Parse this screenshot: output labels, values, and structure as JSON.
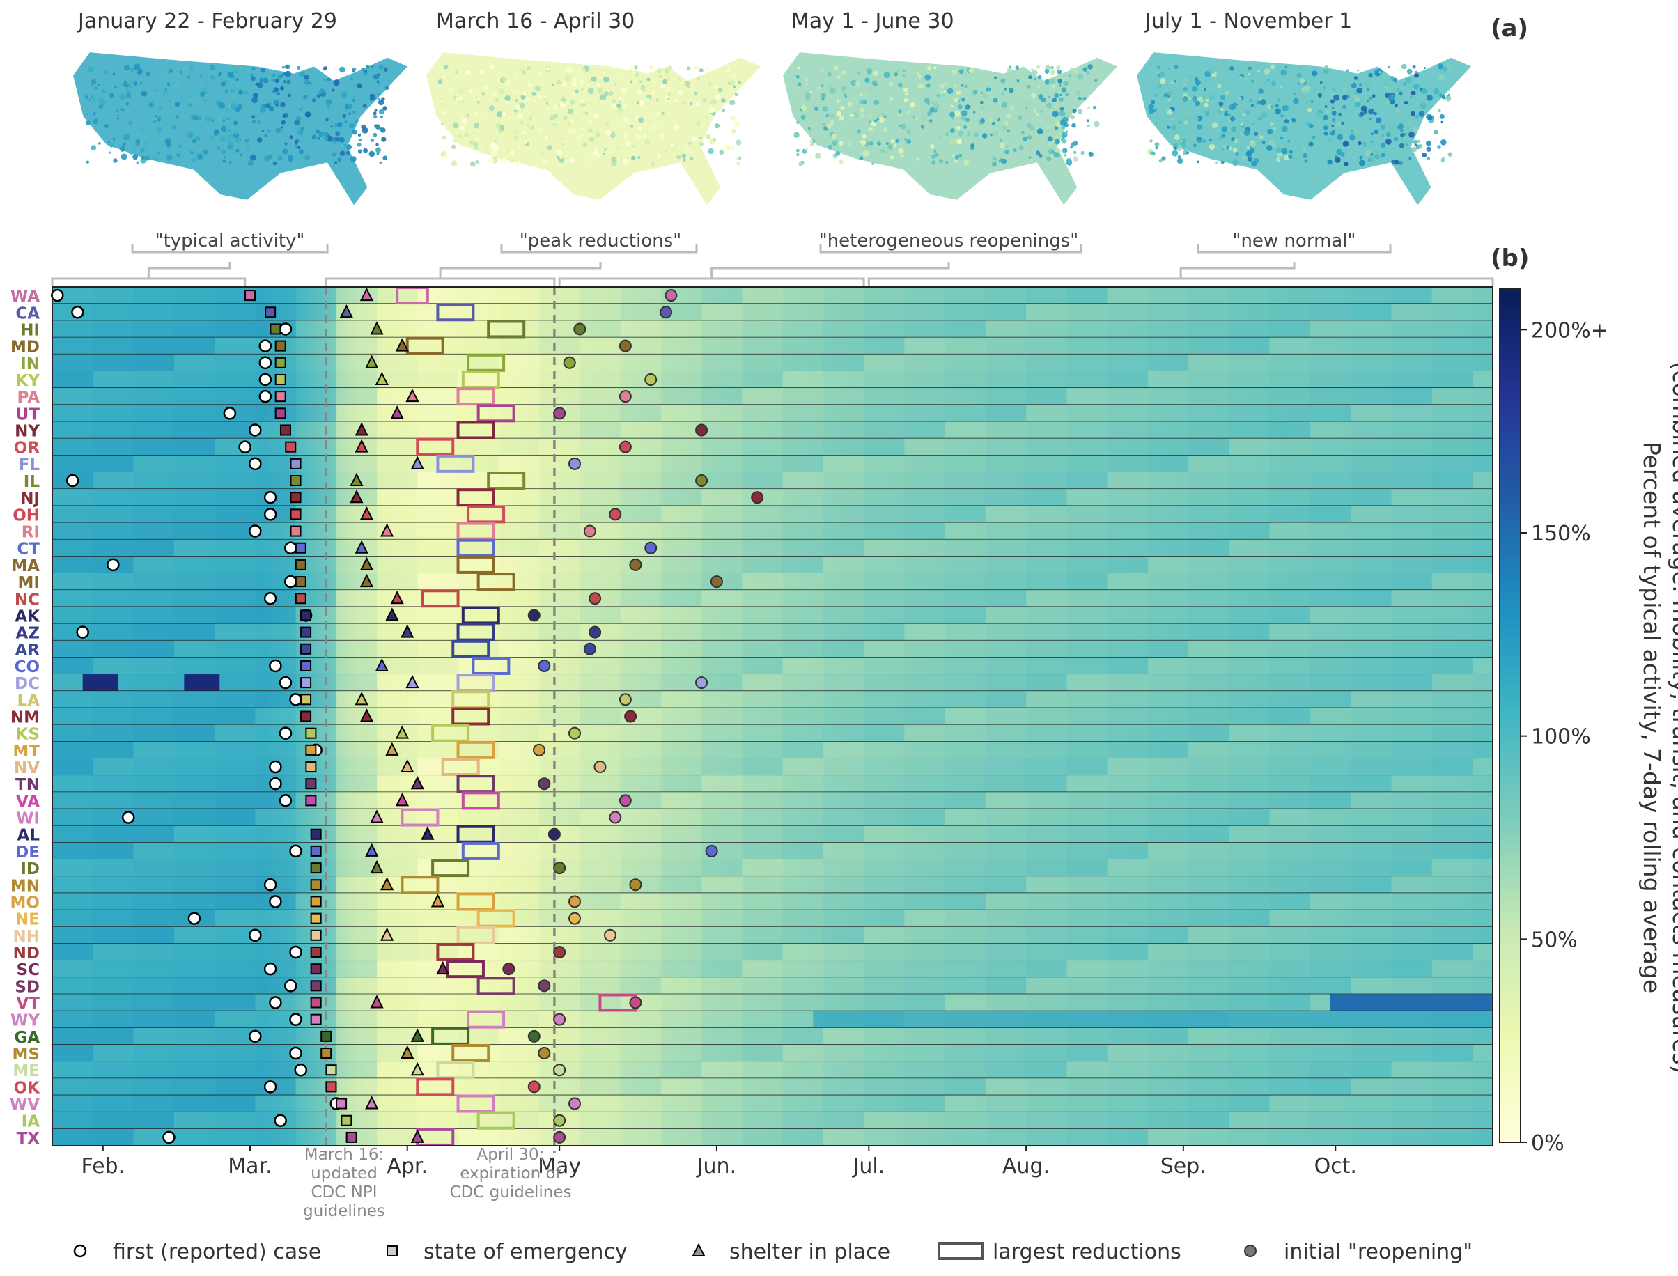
{
  "panel_labels": {
    "a": "(a)",
    "b": "(b)"
  },
  "maps": [
    {
      "title": "January 22 - February 29",
      "mean_pct": 115
    },
    {
      "title": "March 16 - April 30",
      "mean_pct": 30
    },
    {
      "title": "May 1 - June 30",
      "mean_pct": 70
    },
    {
      "title": "July 1 - November 1",
      "mean_pct": 95
    }
  ],
  "phases": [
    "\"typical activity\"",
    "\"peak reductions\"",
    "\"heterogeneous reopenings\"",
    "\"new normal\""
  ],
  "annotations": {
    "march16": [
      "March 16:",
      "updated",
      "CDC NPI",
      "guidelines"
    ],
    "april30": [
      "April 30:",
      "expiration of",
      "CDC guidelines"
    ]
  },
  "colors": {
    "colormap": [
      "#ffffd9",
      "#edf8b1",
      "#c7e9b4",
      "#7fcdbb",
      "#41b6c4",
      "#1d91c0",
      "#225ea8",
      "#253494",
      "#081d58"
    ],
    "row_border": "#222222",
    "guide_line": "#888888"
  },
  "chart_data": {
    "type": "heatmap",
    "xlabel": "",
    "ylabel": "",
    "x_range_days": [
      "Jan 22",
      "Nov 1"
    ],
    "month_ticks": [
      {
        "label": "Feb.",
        "day": 10
      },
      {
        "label": "Mar.",
        "day": 39
      },
      {
        "label": "Apr.",
        "day": 70
      },
      {
        "label": "May",
        "day": 100
      },
      {
        "label": "Jun.",
        "day": 131
      },
      {
        "label": "Jul.",
        "day": 161
      },
      {
        "label": "Aug.",
        "day": 192
      },
      {
        "label": "Sep.",
        "day": 223
      },
      {
        "label": "Oct.",
        "day": 253
      }
    ],
    "vlines": [
      {
        "day": 54
      },
      {
        "day": 99
      }
    ],
    "colorbar": {
      "label": [
        "Percent of typical activity, 7-day rolling average",
        "(combined average: mobility, transit, and contacts measures)"
      ],
      "ticks": [
        "0%",
        "50%",
        "100%",
        "150%",
        "200%+"
      ],
      "tick_values": [
        0,
        50,
        100,
        150,
        200
      ],
      "range": [
        0,
        210
      ]
    },
    "legend": [
      "first (reported) case",
      "state of emergency",
      "shelter in place",
      "largest reductions",
      "initial \"reopening\""
    ],
    "states": [
      {
        "abbr": "WA",
        "color": "#c86aa6",
        "case": 1,
        "soe": 39,
        "sip": 62,
        "red": [
          68,
          74
        ],
        "reopen": 122
      },
      {
        "abbr": "CA",
        "color": "#5a5ba9",
        "case": 5,
        "soe": 43,
        "sip": 58,
        "red": [
          76,
          83
        ],
        "reopen": 121
      },
      {
        "abbr": "HI",
        "color": "#6a7a2e",
        "case": 46,
        "soe": 44,
        "sip": 64,
        "red": [
          86,
          93
        ],
        "reopen": 104
      },
      {
        "abbr": "MD",
        "color": "#8a6a2b",
        "case": 42,
        "soe": 45,
        "sip": 69,
        "red": [
          70,
          77
        ],
        "reopen": 113
      },
      {
        "abbr": "IN",
        "color": "#8aa83a",
        "case": 42,
        "soe": 45,
        "sip": 63,
        "red": [
          82,
          89
        ],
        "reopen": 102
      },
      {
        "abbr": "KY",
        "color": "#b7c85a",
        "case": 42,
        "soe": 45,
        "sip": 65,
        "red": [
          81,
          88
        ],
        "reopen": 118
      },
      {
        "abbr": "PA",
        "color": "#e07e98",
        "case": 42,
        "soe": 45,
        "sip": 71,
        "red": [
          80,
          87
        ],
        "reopen": 113
      },
      {
        "abbr": "UT",
        "color": "#a7448e",
        "case": 35,
        "soe": 45,
        "sip": 68,
        "red": [
          84,
          91
        ],
        "reopen": 100
      },
      {
        "abbr": "NY",
        "color": "#7a2a3a",
        "case": 40,
        "soe": 46,
        "sip": 61,
        "red": [
          80,
          87
        ],
        "reopen": 128
      },
      {
        "abbr": "OR",
        "color": "#d04a5a",
        "case": 38,
        "soe": 47,
        "sip": 61,
        "red": [
          72,
          79
        ],
        "reopen": 113
      },
      {
        "abbr": "FL",
        "color": "#8a93d9",
        "case": 40,
        "soe": 48,
        "sip": 72,
        "red": [
          76,
          83
        ],
        "reopen": 103
      },
      {
        "abbr": "IL",
        "color": "#7a8a2e",
        "case": 4,
        "soe": 48,
        "sip": 60,
        "red": [
          86,
          93
        ],
        "reopen": 128
      },
      {
        "abbr": "NJ",
        "color": "#8a2a3a",
        "case": 43,
        "soe": 48,
        "sip": 60,
        "red": [
          80,
          87
        ],
        "reopen": 139
      },
      {
        "abbr": "OH",
        "color": "#d04a5a",
        "case": 43,
        "soe": 48,
        "sip": 62,
        "red": [
          82,
          89
        ],
        "reopen": 111
      },
      {
        "abbr": "RI",
        "color": "#e07e90",
        "case": 40,
        "soe": 48,
        "sip": 66,
        "red": [
          80,
          87
        ],
        "reopen": 106
      },
      {
        "abbr": "CT",
        "color": "#5a6ad0",
        "case": 47,
        "soe": 49,
        "sip": 61,
        "red": [
          80,
          87
        ],
        "reopen": 118
      },
      {
        "abbr": "MA",
        "color": "#8a6a2b",
        "case": 12,
        "soe": 49,
        "sip": 62,
        "red": [
          80,
          87
        ],
        "reopen": 115
      },
      {
        "abbr": "MI",
        "color": "#8a6a2b",
        "case": 47,
        "soe": 49,
        "sip": 62,
        "red": [
          84,
          91
        ],
        "reopen": 131
      },
      {
        "abbr": "NC",
        "color": "#c04a4a",
        "case": 43,
        "soe": 49,
        "sip": 68,
        "red": [
          73,
          80
        ],
        "reopen": 107
      },
      {
        "abbr": "AK",
        "color": "#2a2a6a",
        "case": 50,
        "soe": 50,
        "sip": 67,
        "red": [
          81,
          88
        ],
        "reopen": 95
      },
      {
        "abbr": "AZ",
        "color": "#3a3a8a",
        "case": 6,
        "soe": 50,
        "sip": 70,
        "red": [
          80,
          87
        ],
        "reopen": 107
      },
      {
        "abbr": "AR",
        "color": "#3a4a9a",
        "case": -1,
        "soe": 50,
        "sip": -1,
        "red": [
          79,
          86
        ],
        "reopen": 106
      },
      {
        "abbr": "CO",
        "color": "#5a6ad0",
        "case": 44,
        "soe": 50,
        "sip": 65,
        "red": [
          83,
          90
        ],
        "reopen": 97
      },
      {
        "abbr": "DC",
        "color": "#a0a0e0",
        "case": 46,
        "soe": 50,
        "sip": 71,
        "red": [
          80,
          87
        ],
        "reopen": 128
      },
      {
        "abbr": "LA",
        "color": "#c8c868",
        "case": 48,
        "soe": 50,
        "sip": 61,
        "red": [
          79,
          86
        ],
        "reopen": 113
      },
      {
        "abbr": "NM",
        "color": "#8a2a3a",
        "case": -1,
        "soe": 50,
        "sip": 62,
        "red": [
          79,
          86
        ],
        "reopen": 114
      },
      {
        "abbr": "KS",
        "color": "#b7c85a",
        "case": 46,
        "soe": 51,
        "sip": 69,
        "red": [
          75,
          82
        ],
        "reopen": 103
      },
      {
        "abbr": "MT",
        "color": "#d8a040",
        "case": 52,
        "soe": 51,
        "sip": 67,
        "red": [
          80,
          87
        ],
        "reopen": 96
      },
      {
        "abbr": "NV",
        "color": "#e0b880",
        "case": 44,
        "soe": 51,
        "sip": 70,
        "red": [
          77,
          84
        ],
        "reopen": 108
      },
      {
        "abbr": "TN",
        "color": "#6a3a6a",
        "case": 44,
        "soe": 51,
        "sip": 72,
        "red": [
          80,
          87
        ],
        "reopen": 97
      },
      {
        "abbr": "VA",
        "color": "#c84aa8",
        "case": 46,
        "soe": 51,
        "sip": 69,
        "red": [
          81,
          88
        ],
        "reopen": 113
      },
      {
        "abbr": "WI",
        "color": "#d080c0",
        "case": 15,
        "soe": -1,
        "sip": 64,
        "red": [
          69,
          76
        ],
        "reopen": 111
      },
      {
        "abbr": "AL",
        "color": "#2a2a6a",
        "case": -1,
        "soe": 52,
        "sip": 74,
        "red": [
          80,
          87
        ],
        "reopen": 99
      },
      {
        "abbr": "DE",
        "color": "#5a6ad0",
        "case": 48,
        "soe": 52,
        "sip": 63,
        "red": [
          81,
          88
        ],
        "reopen": 130
      },
      {
        "abbr": "ID",
        "color": "#6a7a2e",
        "case": -1,
        "soe": 52,
        "sip": 64,
        "red": [
          75,
          82
        ],
        "reopen": 100
      },
      {
        "abbr": "MN",
        "color": "#b08a30",
        "case": 43,
        "soe": 52,
        "sip": 66,
        "red": [
          69,
          76
        ],
        "reopen": 115
      },
      {
        "abbr": "MO",
        "color": "#d8a040",
        "case": 44,
        "soe": 52,
        "sip": 76,
        "red": [
          80,
          87
        ],
        "reopen": 103
      },
      {
        "abbr": "NE",
        "color": "#e8b850",
        "case": 28,
        "soe": 52,
        "sip": -1,
        "red": [
          84,
          91
        ],
        "reopen": 103
      },
      {
        "abbr": "NH",
        "color": "#e8c898",
        "case": 40,
        "soe": 52,
        "sip": 66,
        "red": [
          80,
          87
        ],
        "reopen": 110
      },
      {
        "abbr": "ND",
        "color": "#a03a3a",
        "case": 48,
        "soe": 52,
        "sip": -1,
        "red": [
          76,
          83
        ],
        "reopen": 100
      },
      {
        "abbr": "SC",
        "color": "#7a2a5a",
        "case": 43,
        "soe": 52,
        "sip": 77,
        "red": [
          78,
          85
        ],
        "reopen": 90
      },
      {
        "abbr": "SD",
        "color": "#7a3a6a",
        "case": 47,
        "soe": 52,
        "sip": -1,
        "red": [
          84,
          91
        ],
        "reopen": 97
      },
      {
        "abbr": "VT",
        "color": "#c84a8a",
        "case": 44,
        "soe": 52,
        "sip": 64,
        "red": [
          108,
          115
        ],
        "reopen": 115
      },
      {
        "abbr": "WY",
        "color": "#d080c0",
        "case": 48,
        "soe": 52,
        "sip": -1,
        "red": [
          82,
          89
        ],
        "reopen": 100
      },
      {
        "abbr": "GA",
        "color": "#3a6a2a",
        "case": 40,
        "soe": 54,
        "sip": 72,
        "red": [
          75,
          82
        ],
        "reopen": 95
      },
      {
        "abbr": "MS",
        "color": "#b08a30",
        "case": 48,
        "soe": 54,
        "sip": 70,
        "red": [
          79,
          86
        ],
        "reopen": 97
      },
      {
        "abbr": "ME",
        "color": "#c8dca0",
        "case": 49,
        "soe": 55,
        "sip": 72,
        "red": [
          76,
          83
        ],
        "reopen": 100
      },
      {
        "abbr": "OK",
        "color": "#d04a5a",
        "case": 43,
        "soe": 55,
        "sip": -1,
        "red": [
          72,
          79
        ],
        "reopen": 95
      },
      {
        "abbr": "WV",
        "color": "#d080c0",
        "case": 56,
        "soe": 57,
        "sip": 63,
        "red": [
          80,
          87
        ],
        "reopen": 103
      },
      {
        "abbr": "IA",
        "color": "#a8c860",
        "case": 45,
        "soe": 58,
        "sip": -1,
        "red": [
          84,
          91
        ],
        "reopen": 100
      },
      {
        "abbr": "TX",
        "color": "#a84a9a",
        "case": 23,
        "soe": 59,
        "sip": 72,
        "red": [
          72,
          79
        ],
        "reopen": 100
      }
    ]
  }
}
